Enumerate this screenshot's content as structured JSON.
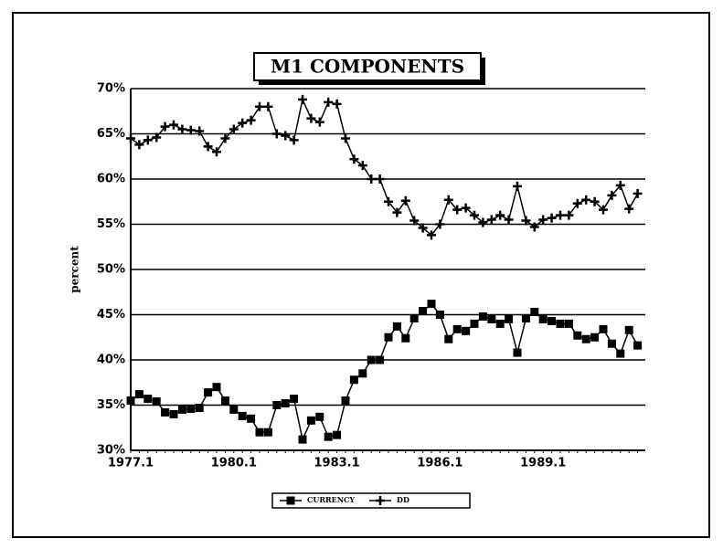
{
  "chart_data": {
    "type": "line",
    "title": "M1 COMPONENTS",
    "y_label": "percent",
    "categories": [
      "1977.1",
      null,
      null,
      null,
      null,
      null,
      null,
      null,
      null,
      null,
      null,
      null,
      "1980.1",
      null,
      null,
      null,
      null,
      null,
      null,
      null,
      null,
      null,
      null,
      null,
      "1983.1",
      null,
      null,
      null,
      null,
      null,
      null,
      null,
      null,
      null,
      null,
      null,
      "1986.1",
      null,
      null,
      null,
      null,
      null,
      null,
      null,
      null,
      null,
      null,
      null,
      "1989.1",
      null,
      null,
      null,
      null,
      null,
      null,
      null,
      null,
      null,
      null,
      null
    ],
    "series": [
      {
        "name": "CURRENCY",
        "color": "#000000",
        "marker": "square",
        "values": [
          35.5,
          36.2,
          35.7,
          35.4,
          34.2,
          34.0,
          34.5,
          34.6,
          34.7,
          36.4,
          37.0,
          35.5,
          34.5,
          33.8,
          33.5,
          32.0,
          32.0,
          35.0,
          35.2,
          35.7,
          31.2,
          33.3,
          33.7,
          31.5,
          31.7,
          35.5,
          37.8,
          38.5,
          40.0,
          40.0,
          42.5,
          43.7,
          42.4,
          44.6,
          45.4,
          46.2,
          45.0,
          42.3,
          43.4,
          43.2,
          44.0,
          44.8,
          44.5,
          44.0,
          44.5,
          40.8,
          44.6,
          45.3,
          44.5,
          44.3,
          44.0,
          44.0,
          42.7,
          42.3,
          42.5,
          43.4,
          41.8,
          40.7,
          43.3,
          41.6
        ]
      },
      {
        "name": "DD",
        "color": "#000000",
        "marker": "plus",
        "values": [
          64.5,
          63.8,
          64.3,
          64.6,
          65.8,
          66.0,
          65.5,
          65.4,
          65.3,
          63.6,
          63.0,
          64.5,
          65.5,
          66.2,
          66.5,
          68.0,
          68.0,
          65.0,
          64.8,
          64.3,
          68.8,
          66.7,
          66.3,
          68.5,
          68.3,
          64.5,
          62.2,
          61.5,
          60.0,
          60.0,
          57.5,
          56.3,
          57.6,
          55.4,
          54.6,
          53.8,
          55.0,
          57.7,
          56.6,
          56.8,
          56.0,
          55.2,
          55.5,
          56.0,
          55.5,
          59.2,
          55.4,
          54.7,
          55.5,
          55.7,
          56.0,
          56.0,
          57.3,
          57.7,
          57.5,
          56.6,
          58.2,
          59.3,
          56.7,
          58.4
        ]
      }
    ],
    "ylim": [
      30,
      70
    ],
    "yticks": [
      {
        "value": 30,
        "label": "30%"
      },
      {
        "value": 35,
        "label": "35%"
      },
      {
        "value": 40,
        "label": "40%"
      },
      {
        "value": 45,
        "label": "45%"
      },
      {
        "value": 50,
        "label": "50%"
      },
      {
        "value": 55,
        "label": "55%"
      },
      {
        "value": 60,
        "label": "60%"
      },
      {
        "value": 65,
        "label": "65%"
      },
      {
        "value": 70,
        "label": "70%"
      }
    ],
    "grid": true,
    "legend": "bottom"
  }
}
